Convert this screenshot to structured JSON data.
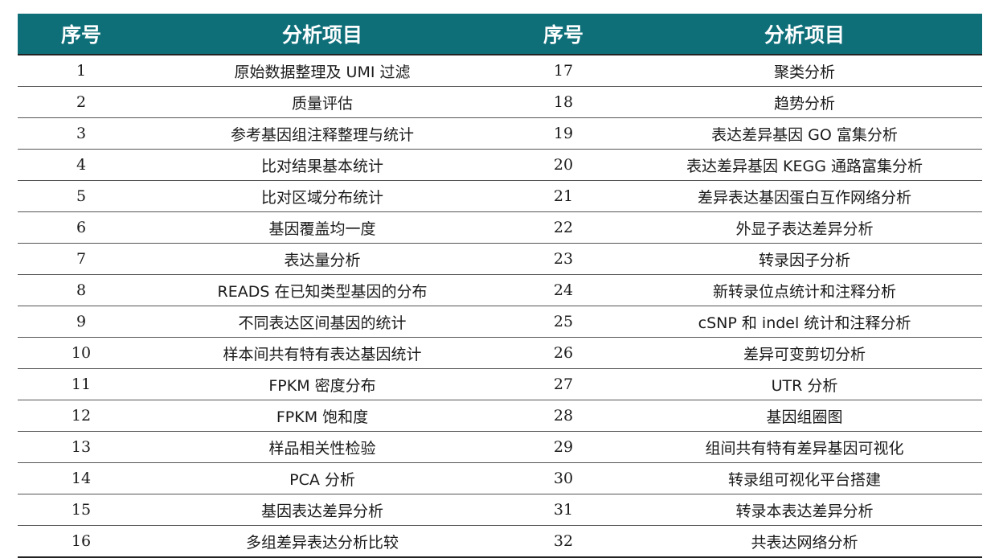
{
  "header": {
    "no_label_1": "序号",
    "item_label_1": "分析项目",
    "no_label_2": "序号",
    "item_label_2": "分析项目"
  },
  "rows": [
    {
      "no1": "1",
      "item1": "原始数据整理及 UMI 过滤",
      "no2": "17",
      "item2": "聚类分析"
    },
    {
      "no1": "2",
      "item1": "质量评估",
      "no2": "18",
      "item2": "趋势分析"
    },
    {
      "no1": "3",
      "item1": "参考基因组注释整理与统计",
      "no2": "19",
      "item2": "表达差异基因 GO 富集分析"
    },
    {
      "no1": "4",
      "item1": "比对结果基本统计",
      "no2": "20",
      "item2": "表达差异基因 KEGG 通路富集分析"
    },
    {
      "no1": "5",
      "item1": "比对区域分布统计",
      "no2": "21",
      "item2": "差异表达基因蛋白互作网络分析"
    },
    {
      "no1": "6",
      "item1": "基因覆盖均一度",
      "no2": "22",
      "item2": "外显子表达差异分析"
    },
    {
      "no1": "7",
      "item1": "表达量分析",
      "no2": "23",
      "item2": "转录因子分析"
    },
    {
      "no1": "8",
      "item1": "READS 在已知类型基因的分布",
      "no2": "24",
      "item2": "新转录位点统计和注释分析"
    },
    {
      "no1": "9",
      "item1": "不同表达区间基因的统计",
      "no2": "25",
      "item2": "cSNP 和 indel 统计和注释分析"
    },
    {
      "no1": "10",
      "item1": "样本间共有特有表达基因统计",
      "no2": "26",
      "item2": "差异可变剪切分析"
    },
    {
      "no1": "11",
      "item1": "FPKM 密度分布",
      "no2": "27",
      "item2": "UTR 分析"
    },
    {
      "no1": "12",
      "item1": "FPKM 饱和度",
      "no2": "28",
      "item2": "基因组圈图"
    },
    {
      "no1": "13",
      "item1": "样品相关性检验",
      "no2": "29",
      "item2": "组间共有特有差异基因可视化"
    },
    {
      "no1": "14",
      "item1": "PCA 分析",
      "no2": "30",
      "item2": "转录组可视化平台搭建"
    },
    {
      "no1": "15",
      "item1": "基因表达差异分析",
      "no2": "31",
      "item2": "转录本表达差异分析"
    },
    {
      "no1": "16",
      "item1": "多组差异表达分析比较",
      "no2": "32",
      "item2": "共表达网络分析"
    }
  ]
}
